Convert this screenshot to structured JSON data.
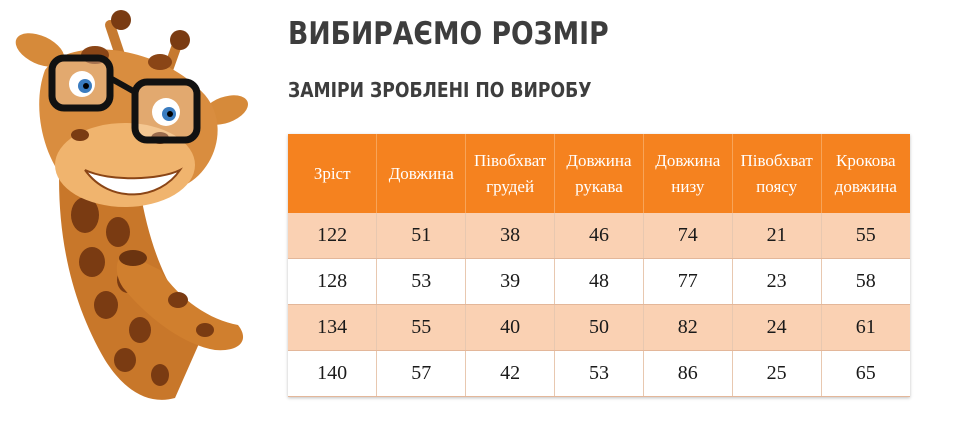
{
  "heading": {
    "title": "ВИБИРАЄМО РОЗМІР",
    "subtitle": "ЗАМІРИ ЗРОБЛЕНІ ПО ВИРОБУ"
  },
  "size_table": {
    "headers": [
      "Зріст",
      "Довжина",
      "Півобхват грудей",
      "Довжина рукава",
      "Довжина низу",
      "Півобхват поясу",
      "Крокова довжина"
    ],
    "rows": [
      [
        "122",
        "51",
        "38",
        "46",
        "74",
        "21",
        "55"
      ],
      [
        "128",
        "53",
        "39",
        "48",
        "77",
        "23",
        "58"
      ],
      [
        "134",
        "55",
        "40",
        "50",
        "82",
        "24",
        "61"
      ],
      [
        "140",
        "57",
        "42",
        "53",
        "86",
        "25",
        "65"
      ]
    ]
  },
  "colors": {
    "header_orange": "#f5821f",
    "stripe_peach": "#fad1b3",
    "title_gray": "#3d3d3d"
  },
  "illustration": {
    "icon": "giraffe-with-glasses-icon"
  }
}
